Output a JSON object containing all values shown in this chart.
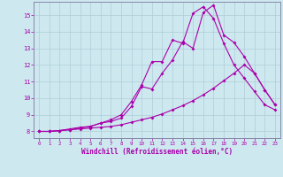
{
  "bg_color": "#cde8ef",
  "grid_color": "#b0cdd8",
  "line_color": "#aa00aa",
  "spine_color": "#8888aa",
  "xlabel": "Windchill (Refroidissement éolien,°C)",
  "xlim": [
    -0.5,
    23.5
  ],
  "ylim": [
    7.6,
    15.8
  ],
  "yticks": [
    8,
    9,
    10,
    11,
    12,
    13,
    14,
    15
  ],
  "xticks": [
    0,
    1,
    2,
    3,
    4,
    5,
    6,
    7,
    8,
    9,
    10,
    11,
    12,
    13,
    14,
    15,
    16,
    17,
    18,
    19,
    20,
    21,
    22,
    23
  ],
  "series1": [
    8.0,
    8.0,
    8.05,
    8.1,
    8.15,
    8.2,
    8.25,
    8.3,
    8.4,
    8.55,
    8.7,
    8.85,
    9.05,
    9.3,
    9.55,
    9.85,
    10.2,
    10.6,
    11.05,
    11.5,
    12.0,
    11.5,
    10.5,
    9.6
  ],
  "series2": [
    8.0,
    8.0,
    8.05,
    8.1,
    8.2,
    8.3,
    8.5,
    8.7,
    9.0,
    9.8,
    10.8,
    12.2,
    12.2,
    13.5,
    13.3,
    15.1,
    15.5,
    14.8,
    13.3,
    12.0,
    11.2,
    10.4,
    9.6,
    9.3
  ],
  "series3": [
    8.0,
    8.0,
    8.05,
    8.15,
    8.25,
    8.3,
    8.5,
    8.6,
    8.8,
    9.5,
    10.7,
    10.55,
    11.5,
    12.3,
    13.4,
    13.0,
    15.15,
    15.6,
    13.8,
    13.35,
    12.5,
    11.5,
    10.5,
    9.6
  ]
}
